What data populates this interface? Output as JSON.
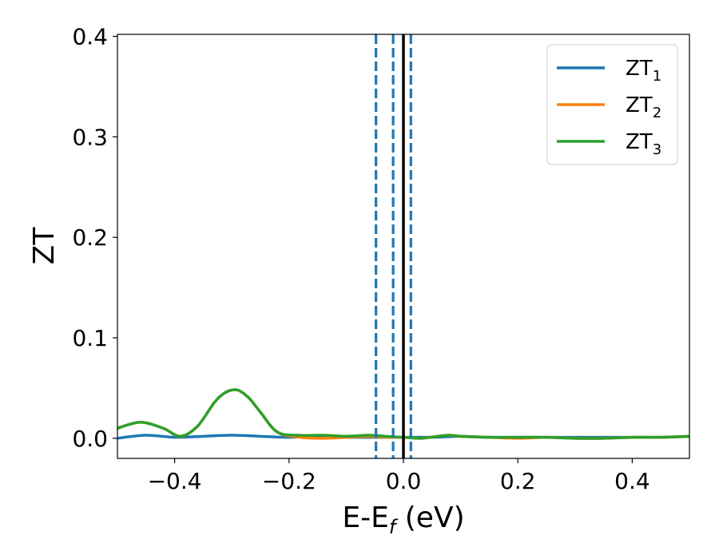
{
  "chart_data": {
    "type": "line",
    "xlabel": "E-E",
    "xlabel_sub": "f",
    "xlabel_unit": " (eV)",
    "ylabel": "ZT",
    "xlim": [
      -0.5,
      0.5
    ],
    "ylim": [
      -0.02,
      0.402
    ],
    "xticks": [
      -0.4,
      -0.2,
      0.0,
      0.2,
      0.4
    ],
    "xtick_labels": [
      "−0.4",
      "−0.2",
      "0.0",
      "0.2",
      "0.4"
    ],
    "yticks": [
      0.0,
      0.1,
      0.2,
      0.3,
      0.4
    ],
    "ytick_labels": [
      "0.0",
      "0.1",
      "0.2",
      "0.3",
      "0.4"
    ],
    "grid": false,
    "legend_position": "top-right",
    "series": [
      {
        "name": "ZT",
        "name_sub": "1",
        "color": "#1f77b4",
        "x": [
          -0.5,
          -0.45,
          -0.4,
          -0.35,
          -0.3,
          -0.25,
          -0.2,
          -0.15,
          -0.1,
          -0.05,
          0.0,
          0.05,
          0.1,
          0.15,
          0.2,
          0.25,
          0.3,
          0.35,
          0.4,
          0.45,
          0.5
        ],
        "y": [
          0.0,
          0.003,
          0.001,
          0.002,
          0.003,
          0.002,
          0.001,
          0.002,
          0.001,
          0.001,
          0.001,
          0.001,
          0.002,
          0.001,
          0.001,
          0.001,
          0.001,
          0.001,
          0.001,
          0.001,
          0.002
        ]
      },
      {
        "name": "ZT",
        "name_sub": "2",
        "color": "#ff7f0e",
        "x": [
          -0.5,
          -0.46,
          -0.42,
          -0.39,
          -0.36,
          -0.33,
          -0.31,
          -0.29,
          -0.27,
          -0.25,
          -0.22,
          -0.18,
          -0.14,
          -0.1,
          -0.06,
          -0.03,
          0.0,
          0.03,
          0.06,
          0.08,
          0.1,
          0.15,
          0.2,
          0.25,
          0.3,
          0.35,
          0.4,
          0.45,
          0.5
        ],
        "y": [
          0.01,
          0.016,
          0.01,
          0.002,
          0.012,
          0.036,
          0.046,
          0.048,
          0.04,
          0.026,
          0.006,
          0.001,
          0.0,
          0.001,
          0.002,
          0.001,
          0.001,
          0.0,
          0.002,
          0.003,
          0.002,
          0.001,
          0.0,
          0.001,
          0.0,
          0.0,
          0.001,
          0.001,
          0.002
        ]
      },
      {
        "name": "ZT",
        "name_sub": "3",
        "color": "#2ca02c",
        "x": [
          -0.5,
          -0.46,
          -0.42,
          -0.39,
          -0.36,
          -0.33,
          -0.31,
          -0.29,
          -0.27,
          -0.25,
          -0.22,
          -0.18,
          -0.14,
          -0.1,
          -0.06,
          -0.03,
          0.0,
          0.03,
          0.06,
          0.08,
          0.1,
          0.15,
          0.2,
          0.25,
          0.3,
          0.35,
          0.4,
          0.45,
          0.5
        ],
        "y": [
          0.01,
          0.016,
          0.01,
          0.002,
          0.012,
          0.036,
          0.046,
          0.048,
          0.04,
          0.026,
          0.006,
          0.003,
          0.003,
          0.002,
          0.003,
          0.002,
          0.001,
          0.0,
          0.002,
          0.003,
          0.002,
          0.001,
          0.001,
          0.001,
          0.0,
          0.0,
          0.001,
          0.001,
          0.002
        ]
      }
    ],
    "vlines": [
      {
        "x": -0.048,
        "style": "dashed",
        "color": "#1f77b4"
      },
      {
        "x": -0.018,
        "style": "dashed",
        "color": "#1f77b4"
      },
      {
        "x": 0.013,
        "style": "dashed",
        "color": "#1f77b4"
      },
      {
        "x": 0.0,
        "style": "solid",
        "color": "#000000"
      }
    ]
  }
}
